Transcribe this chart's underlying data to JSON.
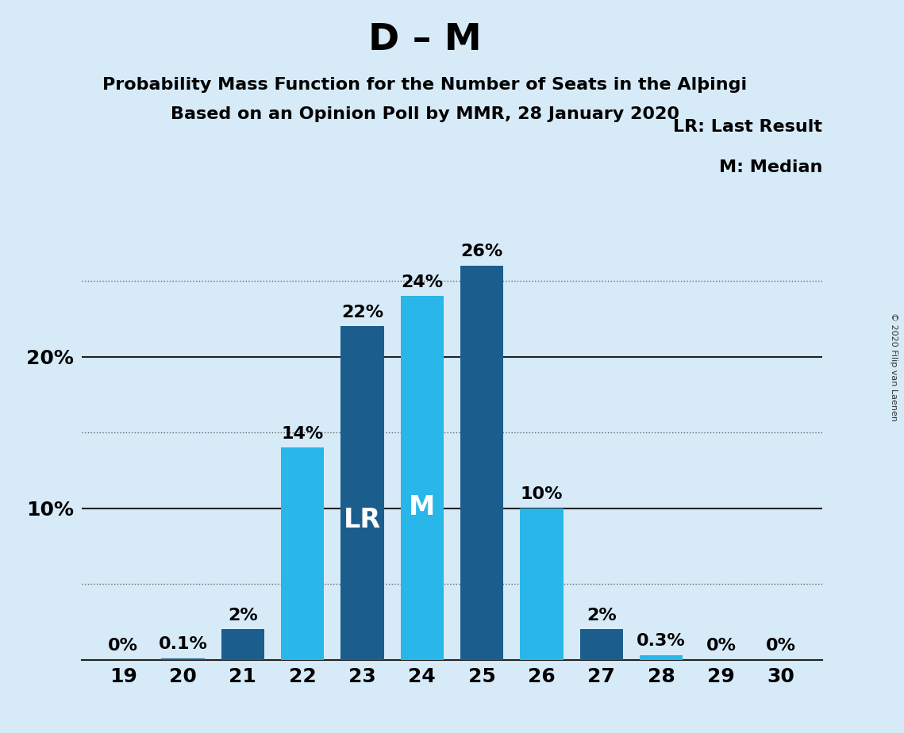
{
  "title": "D – M",
  "subtitle1": "Probability Mass Function for the Number of Seats in the Alþingi",
  "subtitle2": "Based on an Opinion Poll by MMR, 28 January 2020",
  "copyright": "© 2020 Filip van Laenen",
  "seats": [
    19,
    20,
    21,
    22,
    23,
    24,
    25,
    26,
    27,
    28,
    29,
    30
  ],
  "values": [
    0.0,
    0.1,
    2.0,
    14.0,
    22.0,
    24.0,
    26.0,
    10.0,
    2.0,
    0.3,
    0.0,
    0.0
  ],
  "labels": [
    "0%",
    "0.1%",
    "2%",
    "14%",
    "22%",
    "24%",
    "26%",
    "10%",
    "2%",
    "0.3%",
    "0%",
    "0%"
  ],
  "bar_colors": [
    "#1b5e8e",
    "#1b5e8e",
    "#1b5e8e",
    "#29b6e8",
    "#1b5e8e",
    "#29b6e8",
    "#1b5e8e",
    "#29b6e8",
    "#1b5e8e",
    "#29b6e8",
    "#1b5e8e",
    "#1b5e8e"
  ],
  "lr_seat": 23,
  "median_seat": 24,
  "background_color": "#d6eaf8",
  "plot_bg_color": "#d6eaf8",
  "ylim_max": 30,
  "ytick_solid": [
    10,
    20
  ],
  "ytick_dotted": [
    5,
    15,
    25
  ],
  "ytick_labels_positions": [
    10,
    20
  ],
  "ytick_labels_values": [
    "10%",
    "20%"
  ],
  "legend_lr": "LR: Last Result",
  "legend_m": "M: Median",
  "label_in_bar": {
    "23": "LR",
    "24": "M"
  },
  "title_fontsize": 34,
  "subtitle_fontsize": 16,
  "axis_fontsize": 18,
  "bar_label_fontsize": 16,
  "in_bar_fontsize": 24,
  "legend_fontsize": 16
}
